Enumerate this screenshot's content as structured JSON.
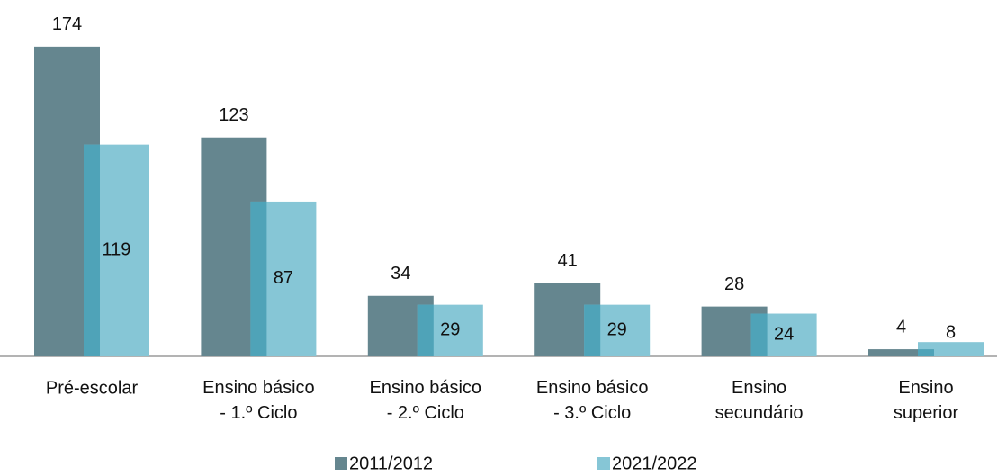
{
  "chart_data": {
    "type": "bar",
    "categories": [
      "Pré-escolar",
      "Ensino básico\n- 1.º Ciclo",
      "Ensino básico\n- 2.º Ciclo",
      "Ensino básico\n- 3.º Ciclo",
      "Ensino\nsecundário",
      "Ensino\nsuperior"
    ],
    "series": [
      {
        "name": "2011/2012",
        "color": "#65868f",
        "values": [
          174,
          123,
          34,
          41,
          28,
          4
        ]
      },
      {
        "name": "2021/2022",
        "color": "#86c6d6",
        "values": [
          119,
          87,
          29,
          29,
          24,
          8
        ]
      }
    ],
    "overlap_color": "#4fa3b8",
    "ylim": [
      0,
      180
    ],
    "legend": "bottom"
  }
}
